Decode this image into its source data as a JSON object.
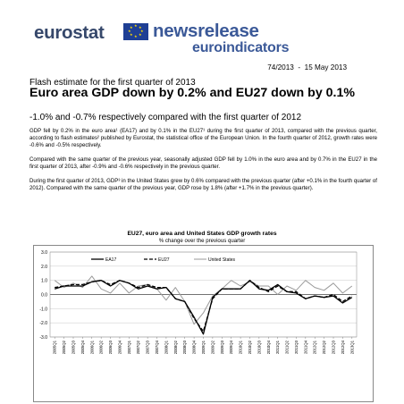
{
  "header": {
    "logo_left": "eurostat",
    "logo_right_top": "newsrelease",
    "logo_right_bottom": "euroindicators",
    "brand_color": "#36486b",
    "flag_color": "#1f3f94"
  },
  "reference": {
    "text": "74/2013  -  15 May 2013"
  },
  "subtitle": "Flash estimate for the first quarter of 2013",
  "headline": "Euro area GDP down by 0.2% and EU27 down by 0.1%",
  "subheadline": "-1.0% and -0.7% respectively compared with the first quarter of 2012",
  "paragraphs": [
    "GDP fell by 0.2% in the euro area¹ (EA17) and by 0.1% in the EU27¹ during the first quarter of 2013, compared with the previous quarter, according to flash estimates² published by Eurostat, the statistical office of the European Union. In the fourth quarter of 2012, growth rates were -0.6% and -0.5% respectively.",
    "Compared with the same quarter of the previous year, seasonally adjusted GDP fell by 1.0% in the euro area and by 0.7% in the EU27 in the first quarter of 2013, after -0.9% and -0.6% respectively in the previous quarter.",
    "During the first quarter of 2013, GDP³ in the United States grew by 0.6% compared with the previous quarter (after +0.1% in the fourth quarter of 2012). Compared with the same quarter of the previous year, GDP rose by 1.8% (after +1.7% in the previous quarter)."
  ],
  "chart_data": {
    "type": "line",
    "title": "EU27, euro area and United States GDP growth rates",
    "subtitle": "% change over the previous quarter",
    "xlabel": "",
    "ylabel": "",
    "ylim": [
      -3.0,
      3.0
    ],
    "yticks": [
      "3.0",
      "2.0",
      "1.0",
      "0.0",
      "-1.0",
      "-2.0",
      "-3.0"
    ],
    "grid": true,
    "legend_position": "top",
    "x": [
      "2005Q1",
      "2005Q2",
      "2005Q3",
      "2005Q4",
      "2006Q1",
      "2006Q2",
      "2006Q3",
      "2006Q4",
      "2007Q1",
      "2007Q2",
      "2007Q3",
      "2007Q4",
      "2008Q1",
      "2008Q2",
      "2008Q3",
      "2008Q4",
      "2009Q1",
      "2009Q2",
      "2009Q3",
      "2009Q4",
      "2010Q1",
      "2010Q2",
      "2010Q3",
      "2010Q4",
      "2011Q1",
      "2011Q2",
      "2011Q3",
      "2011Q4",
      "2012Q1",
      "2012Q2",
      "2012Q3",
      "2012Q4",
      "2013Q1"
    ],
    "series": [
      {
        "name": "EA17",
        "color": "#000000",
        "dash": "",
        "width": 1.3,
        "values": [
          0.4,
          0.6,
          0.6,
          0.6,
          0.9,
          1.0,
          0.6,
          1.0,
          0.8,
          0.4,
          0.6,
          0.4,
          0.5,
          -0.3,
          -0.5,
          -1.6,
          -2.8,
          -0.2,
          0.4,
          0.4,
          0.4,
          1.0,
          0.4,
          0.3,
          0.7,
          0.2,
          0.1,
          -0.3,
          -0.1,
          -0.2,
          -0.1,
          -0.6,
          -0.2
        ]
      },
      {
        "name": "EU27",
        "color": "#000000",
        "dash": "4,2",
        "width": 1.3,
        "values": [
          0.5,
          0.6,
          0.7,
          0.7,
          0.9,
          1.0,
          0.7,
          1.0,
          0.8,
          0.5,
          0.7,
          0.5,
          0.5,
          -0.3,
          -0.5,
          -1.7,
          -2.6,
          -0.3,
          0.4,
          0.4,
          0.4,
          1.0,
          0.5,
          0.2,
          0.6,
          0.2,
          0.2,
          -0.3,
          -0.1,
          -0.2,
          0.0,
          -0.5,
          -0.1
        ]
      },
      {
        "name": "United States",
        "color": "#9a9a9a",
        "dash": "",
        "width": 1.0,
        "values": [
          1.0,
          0.5,
          0.8,
          0.5,
          1.3,
          0.4,
          0.1,
          0.8,
          0.1,
          0.6,
          0.7,
          0.4,
          -0.4,
          0.5,
          -0.5,
          -2.1,
          -1.3,
          -0.1,
          0.4,
          1.0,
          0.6,
          0.9,
          0.6,
          0.6,
          0.0,
          0.6,
          0.3,
          1.0,
          0.5,
          0.3,
          0.8,
          0.1,
          0.6
        ]
      }
    ]
  }
}
